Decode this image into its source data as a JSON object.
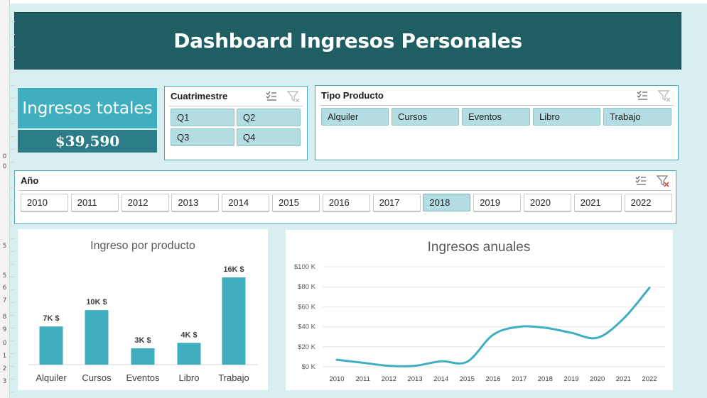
{
  "title": "Dashboard Ingresos Personales",
  "kpi": {
    "label": "Ingresos totales",
    "value": "$39,590"
  },
  "row_numbers": [
    "0",
    "0",
    "5",
    "5",
    "6",
    "7",
    "8",
    "9",
    "0",
    "1",
    "2",
    "3"
  ],
  "cuatrimestre": {
    "header": "Cuatrimestre",
    "items": [
      "Q1",
      "Q2",
      "Q3",
      "Q4"
    ]
  },
  "tipo_producto": {
    "header": "Tipo Producto",
    "items": [
      "Alquiler",
      "Cursos",
      "Eventos",
      "Libro",
      "Trabajo"
    ]
  },
  "anio": {
    "header": "Año",
    "items": [
      "2010",
      "2011",
      "2012",
      "2013",
      "2014",
      "2015",
      "2016",
      "2017",
      "2018",
      "2019",
      "2020",
      "2021",
      "2022"
    ],
    "selected": "2018"
  },
  "colors": {
    "accent": "#3fafbf",
    "title_bg": "#1f5e63",
    "kpi_dark": "#2b7e88",
    "slicer_sel": "#b3dde2",
    "filter_clear": "#d9534f"
  },
  "chart_data": [
    {
      "type": "bar",
      "title": "Ingreso por producto",
      "categories": [
        "Alquiler",
        "Cursos",
        "Eventos",
        "Libro",
        "Trabajo"
      ],
      "values": [
        7000,
        10000,
        3000,
        4000,
        16000
      ],
      "data_labels": [
        "7K $",
        "10K $",
        "3K $",
        "4K $",
        "16K $"
      ],
      "color": "#3fafbf"
    },
    {
      "type": "line",
      "title": "Ingresos anuales",
      "x": [
        "2010",
        "2011",
        "2012",
        "2013",
        "2014",
        "2015",
        "2016",
        "2017",
        "2018",
        "2019",
        "2020",
        "2021",
        "2022"
      ],
      "values": [
        7000,
        4000,
        1000,
        1000,
        5500,
        5000,
        32000,
        40000,
        39000,
        34000,
        29000,
        48000,
        79000
      ],
      "ylim": [
        0,
        100000
      ],
      "y_ticks": [
        "$0 K",
        "$20 K",
        "$40 K",
        "$60 K",
        "$80 K",
        "$100 K"
      ],
      "grid": true,
      "color": "#3fafbf"
    }
  ]
}
